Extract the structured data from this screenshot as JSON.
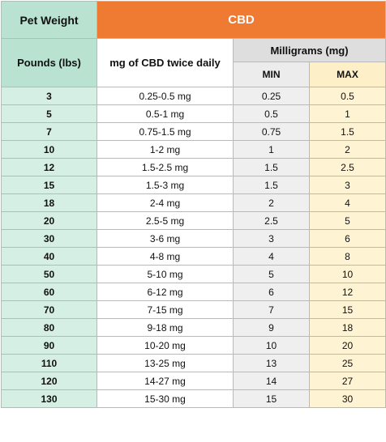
{
  "header": {
    "pet_weight": "Pet Weight",
    "cbd": "CBD",
    "pounds": "Pounds (lbs)",
    "mg_twice_daily": "mg of CBD twice daily",
    "milligrams": "Milligrams (mg)",
    "min": "MIN",
    "max": "MAX"
  },
  "rows": [
    {
      "lbs": "3",
      "range": "0.25-0.5 mg",
      "min": "0.25",
      "max": "0.5"
    },
    {
      "lbs": "5",
      "range": "0.5-1 mg",
      "min": "0.5",
      "max": "1"
    },
    {
      "lbs": "7",
      "range": "0.75-1.5 mg",
      "min": "0.75",
      "max": "1.5"
    },
    {
      "lbs": "10",
      "range": "1-2 mg",
      "min": "1",
      "max": "2"
    },
    {
      "lbs": "12",
      "range": "1.5-2.5 mg",
      "min": "1.5",
      "max": "2.5"
    },
    {
      "lbs": "15",
      "range": "1.5-3 mg",
      "min": "1.5",
      "max": "3"
    },
    {
      "lbs": "18",
      "range": "2-4 mg",
      "min": "2",
      "max": "4"
    },
    {
      "lbs": "20",
      "range": "2.5-5 mg",
      "min": "2.5",
      "max": "5"
    },
    {
      "lbs": "30",
      "range": "3-6 mg",
      "min": "3",
      "max": "6"
    },
    {
      "lbs": "40",
      "range": "4-8 mg",
      "min": "4",
      "max": "8"
    },
    {
      "lbs": "50",
      "range": "5-10 mg",
      "min": "5",
      "max": "10"
    },
    {
      "lbs": "60",
      "range": "6-12 mg",
      "min": "6",
      "max": "12"
    },
    {
      "lbs": "70",
      "range": "7-15 mg",
      "min": "7",
      "max": "15"
    },
    {
      "lbs": "80",
      "range": "9-18 mg",
      "min": "9",
      "max": "18"
    },
    {
      "lbs": "90",
      "range": "10-20 mg",
      "min": "10",
      "max": "20"
    },
    {
      "lbs": "110",
      "range": "13-25 mg",
      "min": "13",
      "max": "25"
    },
    {
      "lbs": "120",
      "range": "14-27 mg",
      "min": "14",
      "max": "27"
    },
    {
      "lbs": "130",
      "range": "15-30 mg",
      "min": "15",
      "max": "30"
    }
  ],
  "colors": {
    "cbd_header": "#ef7a32",
    "pet_weight_header": "#b9e2d1",
    "weight_column": "#d6efe4",
    "min_column": "#efefef",
    "max_column": "#fef3d2",
    "milligrams_header": "#dedede"
  }
}
